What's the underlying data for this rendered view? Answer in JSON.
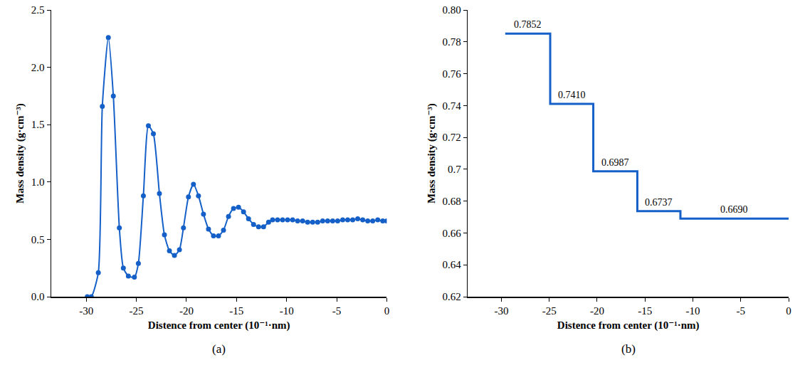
{
  "chart_data": [
    {
      "type": "line",
      "panel_label": "(a)",
      "x_label": "Distence from center (10⁻¹·nm)",
      "y_label": "Mass density (g·cm⁻³)",
      "color": "#1560c8",
      "marker": "circle",
      "x": [
        -29.9,
        -29.5,
        -28.8,
        -28.4,
        -27.8,
        -27.3,
        -26.7,
        -26.3,
        -25.8,
        -25.2,
        -24.8,
        -24.3,
        -23.8,
        -23.3,
        -22.7,
        -22.2,
        -21.7,
        -21.2,
        -20.7,
        -20.3,
        -19.8,
        -19.3,
        -18.8,
        -18.3,
        -17.8,
        -17.3,
        -16.8,
        -16.3,
        -15.8,
        -15.3,
        -14.8,
        -14.3,
        -13.8,
        -13.3,
        -12.8,
        -12.3,
        -11.8,
        -11.4,
        -10.9,
        -10.4,
        -9.9,
        -9.4,
        -8.9,
        -8.4,
        -7.9,
        -7.4,
        -6.9,
        -6.4,
        -5.9,
        -5.4,
        -4.9,
        -4.4,
        -3.9,
        -3.4,
        -2.9,
        -2.4,
        -1.9,
        -1.4,
        -0.9,
        -0.4,
        0.0
      ],
      "values": [
        0.0,
        0.0,
        0.21,
        1.66,
        2.26,
        1.75,
        0.6,
        0.25,
        0.18,
        0.17,
        0.29,
        0.88,
        1.49,
        1.42,
        0.9,
        0.54,
        0.4,
        0.36,
        0.41,
        0.6,
        0.87,
        0.98,
        0.88,
        0.72,
        0.59,
        0.53,
        0.53,
        0.58,
        0.7,
        0.77,
        0.78,
        0.74,
        0.68,
        0.63,
        0.61,
        0.61,
        0.65,
        0.67,
        0.67,
        0.67,
        0.67,
        0.67,
        0.66,
        0.66,
        0.65,
        0.65,
        0.65,
        0.66,
        0.66,
        0.66,
        0.66,
        0.67,
        0.67,
        0.67,
        0.68,
        0.67,
        0.66,
        0.66,
        0.67,
        0.66,
        0.66
      ],
      "xlim": [
        -33.5,
        0
      ],
      "xticks": [
        -30,
        -25,
        -20,
        -15,
        -10,
        -5,
        0
      ],
      "ylim": [
        0,
        2.5
      ],
      "yticks": [
        {
          "value": 0,
          "label": "0.0"
        },
        0.5,
        {
          "value": 1,
          "label": "1.0"
        },
        1.5,
        {
          "value": 2,
          "label": "2.0"
        },
        2.5
      ],
      "grid": false
    },
    {
      "type": "step",
      "panel_label": "(b)",
      "x_label": "Distence from center (10⁻¹·nm)",
      "y_label": "Mass density (g·cm⁻³)",
      "color": "#1560c8",
      "bins": [
        -29.6,
        -24.9,
        -20.4,
        -15.8,
        -11.3,
        0
      ],
      "values": [
        0.7852,
        0.741,
        0.6987,
        0.6737,
        0.669
      ],
      "value_labels": [
        "0.7852",
        "0.7410",
        "0.6987",
        "0.6737",
        "0.6690"
      ],
      "data_labels": true,
      "xlim": [
        -33.5,
        0
      ],
      "xticks": [
        -30,
        -25,
        -20,
        -15,
        -10,
        -5,
        0
      ],
      "ylim": [
        0.62,
        0.8
      ],
      "yticks": [
        0.62,
        0.64,
        0.66,
        0.68,
        0.7,
        0.72,
        0.74,
        0.76,
        0.78,
        {
          "value": 0.8,
          "label": "0.80"
        }
      ],
      "grid": false
    }
  ]
}
